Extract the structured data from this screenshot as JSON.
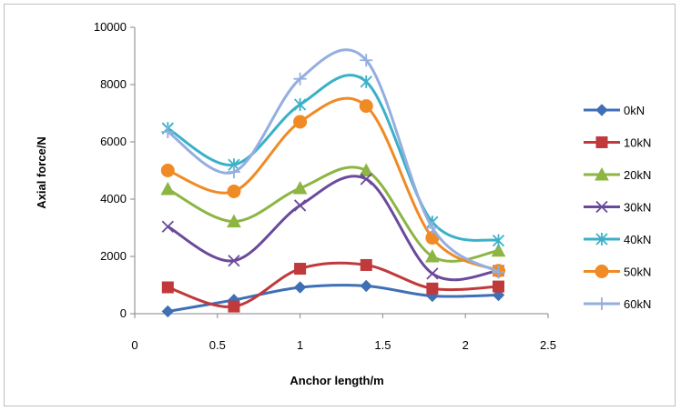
{
  "chart_data": {
    "type": "line",
    "title": "",
    "xlabel": "Anchor length/m",
    "ylabel": "Axial force/N",
    "xlim": [
      0,
      2.5
    ],
    "ylim": [
      0,
      10000
    ],
    "x_ticks": [
      "0",
      "0.5",
      "1",
      "1.5",
      "2",
      "2.5"
    ],
    "y_ticks": [
      "0",
      "2000",
      "4000",
      "6000",
      "8000",
      "10000"
    ],
    "x": [
      0.2,
      0.6,
      1.0,
      1.4,
      1.8,
      2.2
    ],
    "smoothed": true,
    "grid": false,
    "legend_position": "right",
    "series": [
      {
        "name": "0kN",
        "color": "#3f6fb5",
        "marker": "diamond",
        "values": [
          80,
          480,
          920,
          970,
          620,
          650
        ]
      },
      {
        "name": "10kN",
        "color": "#c0393b",
        "marker": "square",
        "values": [
          920,
          250,
          1570,
          1700,
          880,
          950
        ]
      },
      {
        "name": "20kN",
        "color": "#8db543",
        "marker": "triangle",
        "values": [
          4350,
          3220,
          4380,
          5000,
          2000,
          2200
        ]
      },
      {
        "name": "30kN",
        "color": "#6b4a9b",
        "marker": "x",
        "values": [
          3040,
          1850,
          3780,
          4700,
          1400,
          1500
        ]
      },
      {
        "name": "40kN",
        "color": "#3ab1c7",
        "marker": "asterisk",
        "values": [
          6470,
          5200,
          7300,
          8100,
          3200,
          2550
        ]
      },
      {
        "name": "50kN",
        "color": "#f08a24",
        "marker": "circle",
        "values": [
          5000,
          4270,
          6700,
          7250,
          2650,
          1500
        ]
      },
      {
        "name": "60kN",
        "color": "#94aee0",
        "marker": "plus",
        "values": [
          6350,
          4950,
          8200,
          8850,
          3000,
          1450
        ]
      }
    ]
  }
}
